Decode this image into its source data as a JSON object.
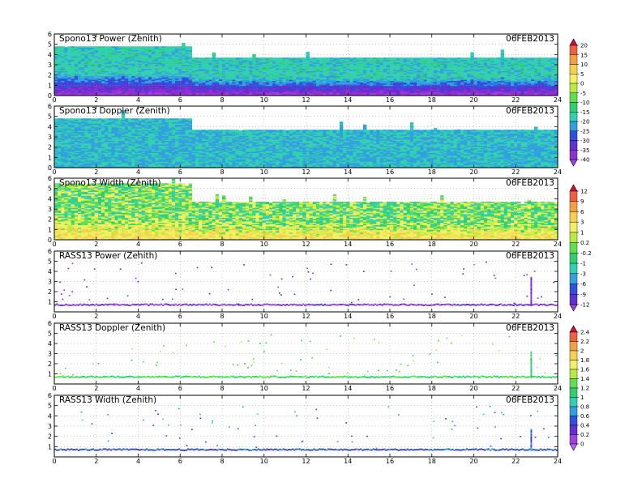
{
  "chart_data": [
    {
      "type": "heatmap",
      "title": "Spono13 Power (Zenith)",
      "date": "06FEB2013",
      "x_ticks": [
        0,
        2,
        4,
        6,
        8,
        10,
        12,
        14,
        16,
        18,
        20,
        22,
        24
      ],
      "y_ticks": [
        0,
        1,
        2,
        3,
        4,
        5,
        6
      ],
      "xlim": [
        0,
        24
      ],
      "ylim": [
        0,
        6
      ],
      "colorbar": "power",
      "profile": {
        "top_height": [
          [
            0,
            4.8
          ],
          [
            6.5,
            4.8
          ],
          [
            6.6,
            3.7
          ],
          [
            24,
            3.7
          ]
        ],
        "value_near_ground": -40,
        "value_aloft": -18,
        "grid": "dotted"
      }
    },
    {
      "type": "heatmap",
      "title": "Spono13 Doppler (Zenith)",
      "date": "06FEB2013",
      "x_ticks": [
        0,
        2,
        4,
        6,
        8,
        10,
        12,
        14,
        16,
        18,
        20,
        22,
        24
      ],
      "y_ticks": [
        0,
        1,
        2,
        3,
        4,
        5,
        6
      ],
      "xlim": [
        0,
        24
      ],
      "ylim": [
        0,
        6
      ],
      "colorbar": "power",
      "profile": {
        "top_height": [
          [
            0,
            4.8
          ],
          [
            6.5,
            4.8
          ],
          [
            6.6,
            3.7
          ],
          [
            24,
            3.7
          ]
        ],
        "value_near_ground": -20,
        "value_aloft": -20,
        "grid": "dotted"
      }
    },
    {
      "type": "heatmap",
      "title": "Spono13 Width (Zenith)",
      "date": "06FEB2013",
      "x_ticks": [
        0,
        2,
        4,
        6,
        8,
        10,
        12,
        14,
        16,
        18,
        20,
        22,
        24
      ],
      "y_ticks": [
        0,
        1,
        2,
        3,
        4,
        5,
        6
      ],
      "xlim": [
        0,
        24
      ],
      "ylim": [
        0,
        6
      ],
      "colorbar": "width",
      "profile": {
        "top_height": [
          [
            0,
            5.5
          ],
          [
            6.5,
            5.5
          ],
          [
            6.6,
            3.7
          ],
          [
            24,
            3.7
          ]
        ],
        "value_near_ground": 3,
        "value_aloft": 0,
        "grid": "dotted"
      }
    },
    {
      "type": "scatter",
      "title": "RASS13 Power (Zenith)",
      "date": "06FEB2013",
      "x_ticks": [
        0,
        2,
        4,
        6,
        8,
        10,
        12,
        14,
        16,
        18,
        20,
        22,
        24
      ],
      "y_ticks": [
        1,
        2,
        3,
        4,
        5,
        6
      ],
      "xlim": [
        0,
        24
      ],
      "ylim": [
        0,
        6
      ],
      "colorbar": "width",
      "profile": {
        "baseline_height": 0.7,
        "baseline_value": -12,
        "spike_x": 22.7,
        "spike_top": 3.5
      }
    },
    {
      "type": "scatter",
      "title": "RASS13 Doppler (Zenith)",
      "date": "06FEB2013",
      "x_ticks": [
        0,
        2,
        4,
        6,
        8,
        10,
        12,
        14,
        16,
        18,
        20,
        22,
        24
      ],
      "y_ticks": [
        1,
        2,
        3,
        4,
        5,
        6
      ],
      "xlim": [
        0,
        24
      ],
      "ylim": [
        0,
        6
      ],
      "colorbar": "doppler",
      "profile": {
        "baseline_height": 0.7,
        "baseline_value": 1.2,
        "spike_x": 22.7,
        "spike_top": 3.3
      }
    },
    {
      "type": "scatter",
      "title": "RASS13 Width (Zenith)",
      "date": "06FEB2013",
      "x_ticks": [
        0,
        2,
        4,
        6,
        8,
        10,
        12,
        14,
        16,
        18,
        20,
        22,
        24
      ],
      "y_ticks": [
        1,
        2,
        3,
        4,
        5,
        6
      ],
      "xlim": [
        0,
        24
      ],
      "ylim": [
        0,
        6
      ],
      "colorbar": "doppler",
      "profile": {
        "baseline_height": 0.7,
        "baseline_value": 0.5,
        "spike_x": 22.7,
        "spike_top": 2.8
      }
    }
  ],
  "colorbars": {
    "power": {
      "labels": [
        "20",
        "15",
        "10",
        "5",
        "0",
        "-5",
        "-10",
        "-15",
        "-20",
        "-25",
        "-30",
        "-35",
        "-40"
      ],
      "colors": [
        "#d0103a",
        "#f06040",
        "#f4a040",
        "#f8d050",
        "#f0f060",
        "#b8ea40",
        "#60e050",
        "#30d070",
        "#30d0b0",
        "#30a0e0",
        "#3050e0",
        "#6030d0",
        "#9030d0",
        "#a040e0"
      ]
    },
    "width": {
      "labels": [
        "12",
        "9",
        "6",
        "3",
        "1",
        "0.2",
        "-0.2",
        "-1",
        "-3",
        "-6",
        "-9",
        "-12"
      ],
      "colors": [
        "#d0103a",
        "#f06040",
        "#f4a040",
        "#f8d050",
        "#f0f060",
        "#b8ea40",
        "#60e050",
        "#30d070",
        "#30d0b0",
        "#30a0e0",
        "#3050e0",
        "#6030d0",
        "#a040e0"
      ]
    },
    "doppler": {
      "labels": [
        "2.4",
        "2.2",
        "2",
        "1.8",
        "1.6",
        "1.4",
        "1.2",
        "1",
        "0.8",
        "0.6",
        "0.4",
        "0.2",
        "0"
      ],
      "colors": [
        "#d0103a",
        "#f06040",
        "#f4a040",
        "#f8d050",
        "#f0f060",
        "#b8ea40",
        "#60e050",
        "#30d070",
        "#30d0b0",
        "#30a0e0",
        "#3050e0",
        "#6030d0",
        "#a040e0",
        "#c060f0"
      ]
    }
  }
}
